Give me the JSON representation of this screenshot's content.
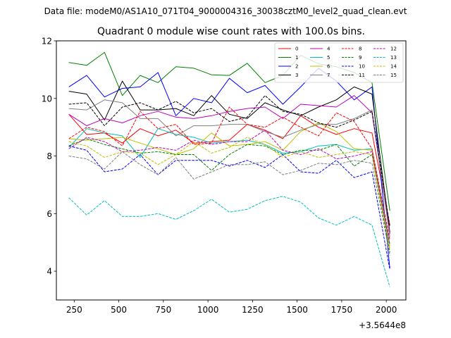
{
  "suptitle": "Data file: modeM0/AS1A10_071T04_9000004316_30038cztM0_level2_quad_clean.evt",
  "chart_data": {
    "type": "line",
    "title": "Quadrant 0 module wise count rates with 100.0s bins.",
    "xlabel": "",
    "ylabel": "",
    "x_offset_label": "+3.5644e8",
    "xlim": [
      150,
      2110
    ],
    "ylim": [
      3,
      12
    ],
    "xticks": [
      250,
      500,
      750,
      1000,
      1250,
      1500,
      1750,
      2000
    ],
    "yticks": [
      4,
      6,
      8,
      10,
      12
    ],
    "x": [
      220,
      320,
      420,
      520,
      620,
      720,
      820,
      920,
      1020,
      1120,
      1220,
      1320,
      1420,
      1520,
      1620,
      1720,
      1820,
      1920,
      2020
    ],
    "legend_position": "top-right",
    "legend_columns": 4,
    "series": [
      {
        "name": "0",
        "color": "#ff0000",
        "dash": "solid",
        "values": [
          9.45,
          8.75,
          8.8,
          8.45,
          8.95,
          8.7,
          8.9,
          8.45,
          8.5,
          8.55,
          9.1,
          8.9,
          8.6,
          9.4,
          9.0,
          8.75,
          8.95,
          8.8,
          5.6
        ]
      },
      {
        "name": "1",
        "color": "#008000",
        "dash": "solid",
        "values": [
          11.25,
          11.15,
          11.6,
          10.1,
          10.8,
          10.55,
          11.1,
          11.05,
          10.82,
          10.8,
          11.22,
          10.55,
          10.8,
          11.5,
          11.2,
          11.1,
          10.9,
          10.55,
          6.1
        ]
      },
      {
        "name": "2",
        "color": "#0000ff",
        "dash": "solid",
        "values": [
          10.4,
          10.8,
          10.05,
          10.35,
          10.4,
          10.9,
          9.4,
          10.0,
          9.85,
          10.7,
          10.2,
          10.45,
          9.8,
          10.4,
          11.05,
          10.6,
          9.95,
          10.4,
          4.1
        ]
      },
      {
        "name": "3",
        "color": "#000000",
        "dash": "solid",
        "values": [
          10.25,
          10.15,
          9.25,
          10.6,
          9.6,
          9.6,
          9.65,
          9.4,
          10.1,
          9.45,
          9.3,
          9.85,
          9.6,
          9.4,
          9.7,
          9.95,
          10.4,
          10.15,
          5.35
        ]
      },
      {
        "name": "4",
        "color": "#bf00bf",
        "dash": "solid",
        "values": [
          9.45,
          9.05,
          9.3,
          9.15,
          9.4,
          9.55,
          9.35,
          9.3,
          9.4,
          9.55,
          9.65,
          9.7,
          9.3,
          9.8,
          9.75,
          9.7,
          10.1,
          9.5,
          5.3
        ]
      },
      {
        "name": "5",
        "color": "#00bfbf",
        "dash": "solid",
        "values": [
          8.3,
          8.95,
          8.8,
          8.7,
          7.95,
          8.95,
          8.75,
          8.65,
          8.45,
          8.5,
          8.55,
          8.4,
          8.1,
          8.15,
          8.35,
          8.4,
          8.2,
          8.25,
          4.95
        ]
      },
      {
        "name": "6",
        "color": "#bfbf00",
        "dash": "solid",
        "values": [
          8.6,
          8.55,
          8.6,
          8.65,
          8.45,
          8.25,
          8.05,
          8.25,
          8.8,
          8.35,
          8.4,
          8.5,
          8.2,
          8.85,
          9.15,
          8.85,
          8.25,
          8.2,
          4.8
        ]
      },
      {
        "name": "7",
        "color": "#808080",
        "dash": "solid",
        "values": [
          9.65,
          9.6,
          9.95,
          9.85,
          9.3,
          9.3,
          8.7,
          9.05,
          9.05,
          9.1,
          9.1,
          8.85,
          8.65,
          8.9,
          9.1,
          9.1,
          9.3,
          9.6,
          5.2
        ]
      },
      {
        "name": "8",
        "color": "#ff0000",
        "dash": "dashed",
        "values": [
          8.6,
          9.0,
          8.85,
          8.35,
          9.55,
          8.95,
          9.1,
          8.4,
          8.45,
          9.7,
          9.1,
          9.0,
          9.35,
          9.0,
          8.7,
          9.5,
          9.2,
          8.25,
          5.1
        ]
      },
      {
        "name": "9",
        "color": "#008000",
        "dash": "dashed",
        "values": [
          8.35,
          8.6,
          8.4,
          8.25,
          8.1,
          8.15,
          8.05,
          8.05,
          7.5,
          8.05,
          8.4,
          8.35,
          8.05,
          8.2,
          8.2,
          8.4,
          7.65,
          8.05,
          4.65
        ]
      },
      {
        "name": "10",
        "color": "#0000ff",
        "dash": "dashed",
        "values": [
          8.35,
          8.2,
          7.45,
          7.55,
          8.05,
          7.35,
          7.85,
          7.85,
          7.85,
          7.65,
          7.85,
          7.6,
          8.05,
          7.45,
          7.4,
          7.85,
          7.25,
          7.45,
          4.05
        ]
      },
      {
        "name": "11",
        "color": "#000000",
        "dash": "dashed",
        "values": [
          9.8,
          9.85,
          9.05,
          9.7,
          9.85,
          9.6,
          9.9,
          9.5,
          9.65,
          9.2,
          9.35,
          10.1,
          9.55,
          9.45,
          9.15,
          9.0,
          9.25,
          9.55,
          5.55
        ]
      },
      {
        "name": "12",
        "color": "#bf00bf",
        "dash": "dashed",
        "values": [
          8.25,
          8.65,
          8.5,
          8.15,
          8.2,
          8.3,
          8.2,
          8.55,
          8.4,
          8.5,
          8.5,
          8.9,
          8.2,
          8.05,
          8.25,
          7.9,
          8.0,
          8.15,
          4.9
        ]
      },
      {
        "name": "13",
        "color": "#00bfbf",
        "dash": "dashed",
        "values": [
          6.55,
          5.95,
          6.45,
          5.9,
          5.9,
          6.0,
          5.8,
          6.1,
          6.5,
          6.05,
          6.15,
          6.45,
          6.6,
          6.4,
          5.85,
          5.6,
          5.9,
          5.6,
          3.45
        ]
      },
      {
        "name": "14",
        "color": "#bfbf00",
        "dash": "dashed",
        "values": [
          8.5,
          8.35,
          7.95,
          8.15,
          8.1,
          7.7,
          8.05,
          8.5,
          8.1,
          8.3,
          8.65,
          8.4,
          7.95,
          8.15,
          7.95,
          8.05,
          8.15,
          8.05,
          4.75
        ]
      },
      {
        "name": "15",
        "color": "#808080",
        "dash": "dashed",
        "values": [
          8.0,
          7.9,
          7.55,
          8.15,
          7.7,
          7.35,
          7.95,
          7.2,
          7.45,
          7.7,
          7.7,
          7.8,
          7.35,
          7.5,
          7.75,
          7.7,
          7.85,
          7.75,
          4.55
        ]
      }
    ]
  }
}
